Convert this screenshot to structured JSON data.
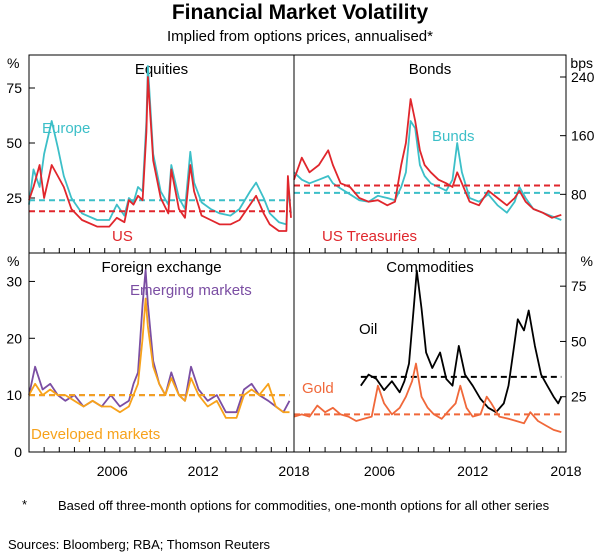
{
  "title": "Financial Market Volatility",
  "subtitle": "Implied from options prices, annualised*",
  "footnote_marker": "*",
  "footnote": "Based off three-month options for commodities, one-month options for all other series",
  "sources": "Sources: Bloomberg; RBA; Thomson Reuters",
  "colors": {
    "red": "#e0262c",
    "teal": "#3cbfc8",
    "purple": "#7b4ea3",
    "orange": "#f7a21b",
    "black": "#000000",
    "coral": "#f0683a"
  },
  "chart_data": [
    {
      "type": "line",
      "title": "Equities",
      "unit_label": "%",
      "xlim": [
        2001.0,
        2018.5
      ],
      "ylim": [
        0,
        90
      ],
      "yticks": [
        25,
        50,
        75
      ],
      "xticks": [
        2006,
        2012,
        2018
      ],
      "series": [
        {
          "name": "Europe",
          "color": "#3cbfc8",
          "mean": 24,
          "x": [
            2001.0,
            2001.3,
            2001.7,
            2002.0,
            2002.5,
            2002.9,
            2003.3,
            2003.8,
            2004.5,
            2005.5,
            2006.3,
            2006.8,
            2007.3,
            2007.6,
            2007.9,
            2008.2,
            2008.5,
            2008.75,
            2008.85,
            2009.2,
            2009.7,
            2010.2,
            2010.4,
            2010.9,
            2011.3,
            2011.65,
            2011.9,
            2012.4,
            2013.0,
            2013.6,
            2014.3,
            2014.9,
            2015.6,
            2016.0,
            2016.5,
            2016.9,
            2017.5,
            2018.0,
            2018.1,
            2018.3
          ],
          "y": [
            22,
            38,
            30,
            45,
            60,
            48,
            35,
            25,
            18,
            15,
            15,
            22,
            17,
            25,
            23,
            30,
            28,
            60,
            85,
            45,
            28,
            22,
            40,
            25,
            20,
            46,
            32,
            23,
            20,
            18,
            17,
            20,
            28,
            32,
            25,
            18,
            14,
            13,
            30,
            18
          ]
        },
        {
          "name": "US",
          "color": "#e0262c",
          "mean": 19,
          "x": [
            2001.0,
            2001.3,
            2001.7,
            2002.0,
            2002.5,
            2002.9,
            2003.3,
            2003.8,
            2004.5,
            2005.5,
            2006.3,
            2006.8,
            2007.3,
            2007.6,
            2007.9,
            2008.2,
            2008.5,
            2008.75,
            2008.85,
            2009.2,
            2009.7,
            2010.2,
            2010.4,
            2010.9,
            2011.3,
            2011.65,
            2011.9,
            2012.4,
            2013.0,
            2013.6,
            2014.3,
            2014.9,
            2015.6,
            2016.0,
            2016.5,
            2016.9,
            2017.5,
            2018.0,
            2018.1,
            2018.3
          ],
          "y": [
            24,
            30,
            40,
            25,
            40,
            35,
            30,
            20,
            15,
            12,
            12,
            16,
            14,
            24,
            22,
            26,
            24,
            55,
            80,
            42,
            25,
            18,
            38,
            20,
            16,
            40,
            28,
            17,
            15,
            13,
            13,
            15,
            22,
            26,
            18,
            13,
            10,
            10,
            35,
            16
          ]
        }
      ],
      "annotations": [
        "Europe",
        "US"
      ]
    },
    {
      "type": "line",
      "title": "Bonds",
      "unit_label": "bps",
      "xlim": [
        2001.0,
        2018.5
      ],
      "ylim": [
        0,
        270
      ],
      "yticks": [
        80,
        160,
        240
      ],
      "xticks": [
        2006,
        2012,
        2018
      ],
      "series": [
        {
          "name": "Bunds",
          "color": "#3cbfc8",
          "mean": 82,
          "x": [
            2001.0,
            2001.5,
            2002.0,
            2002.6,
            2003.2,
            2003.5,
            2004.0,
            2004.6,
            2005.2,
            2005.8,
            2006.4,
            2007.0,
            2007.5,
            2007.9,
            2008.2,
            2008.5,
            2008.8,
            2009.1,
            2009.4,
            2009.8,
            2010.3,
            2010.8,
            2011.2,
            2011.5,
            2011.8,
            2012.3,
            2012.9,
            2013.5,
            2014.1,
            2014.7,
            2015.2,
            2015.5,
            2015.9,
            2016.4,
            2017.0,
            2017.6,
            2018.2
          ],
          "y": [
            110,
            100,
            95,
            100,
            105,
            95,
            88,
            80,
            72,
            70,
            78,
            75,
            72,
            90,
            110,
            180,
            170,
            120,
            105,
            95,
            90,
            85,
            100,
            150,
            110,
            75,
            70,
            80,
            65,
            55,
            70,
            90,
            75,
            60,
            55,
            50,
            45
          ]
        },
        {
          "name": "US Treasuries",
          "color": "#e0262c",
          "mean": 92,
          "x": [
            2001.0,
            2001.5,
            2002.0,
            2002.6,
            2003.2,
            2003.5,
            2004.0,
            2004.6,
            2005.2,
            2005.8,
            2006.4,
            2007.0,
            2007.5,
            2007.9,
            2008.2,
            2008.5,
            2008.8,
            2009.1,
            2009.4,
            2009.8,
            2010.3,
            2010.8,
            2011.2,
            2011.5,
            2011.8,
            2012.3,
            2012.9,
            2013.5,
            2014.1,
            2014.7,
            2015.2,
            2015.5,
            2015.9,
            2016.4,
            2017.0,
            2017.6,
            2018.2
          ],
          "y": [
            100,
            130,
            110,
            120,
            140,
            120,
            95,
            90,
            75,
            70,
            72,
            65,
            70,
            120,
            150,
            210,
            180,
            140,
            120,
            110,
            100,
            95,
            90,
            110,
            95,
            70,
            65,
            85,
            75,
            65,
            75,
            85,
            70,
            60,
            55,
            48,
            52
          ]
        }
      ],
      "annotations": [
        "Bunds",
        "US Treasuries"
      ]
    },
    {
      "type": "line",
      "title": "Foreign exchange",
      "unit_label": "%",
      "xlim": [
        2001.0,
        2018.5
      ],
      "ylim": [
        0,
        35
      ],
      "yticks": [
        0,
        10,
        20,
        30
      ],
      "xticks": [
        2006,
        2012,
        2018
      ],
      "series": [
        {
          "name": "Emerging markets",
          "color": "#7b4ea3",
          "mean": 10,
          "x": [
            2001.0,
            2001.4,
            2001.9,
            2002.4,
            2002.9,
            2003.4,
            2004.0,
            2004.6,
            2005.2,
            2005.8,
            2006.4,
            2007.0,
            2007.6,
            2007.9,
            2008.2,
            2008.5,
            2008.7,
            2008.85,
            2009.2,
            2009.6,
            2010.0,
            2010.4,
            2010.9,
            2011.3,
            2011.7,
            2012.2,
            2012.8,
            2013.4,
            2014.0,
            2014.7,
            2015.2,
            2015.7,
            2016.2,
            2016.8,
            2017.3,
            2017.8,
            2018.2
          ],
          "y": [
            10,
            15,
            11,
            12,
            10,
            9,
            10,
            8,
            9,
            8,
            10,
            8,
            9,
            12,
            14,
            26,
            32,
            26,
            16,
            12,
            10,
            14,
            10,
            9,
            15,
            11,
            9,
            10,
            7,
            7,
            11,
            12,
            10,
            9,
            8,
            7,
            9
          ]
        },
        {
          "name": "Developed markets",
          "color": "#f7a21b",
          "mean": 10,
          "x": [
            2001.0,
            2001.4,
            2001.9,
            2002.4,
            2002.9,
            2003.4,
            2004.0,
            2004.6,
            2005.2,
            2005.8,
            2006.4,
            2007.0,
            2007.6,
            2007.9,
            2008.2,
            2008.5,
            2008.7,
            2008.85,
            2009.2,
            2009.6,
            2010.0,
            2010.4,
            2010.9,
            2011.3,
            2011.7,
            2012.2,
            2012.8,
            2013.4,
            2014.0,
            2014.7,
            2015.2,
            2015.7,
            2016.2,
            2016.8,
            2017.3,
            2017.8,
            2018.2
          ],
          "y": [
            10,
            12,
            10,
            11,
            10,
            10,
            9,
            8,
            9,
            8,
            8,
            7,
            8,
            10,
            12,
            20,
            27,
            22,
            15,
            12,
            10,
            13,
            10,
            9,
            13,
            10,
            8,
            9,
            6,
            6,
            10,
            11,
            10,
            12,
            8,
            7,
            7
          ]
        }
      ],
      "annotations": [
        "Emerging markets",
        "Developed markets"
      ]
    },
    {
      "type": "line",
      "title": "Commodities",
      "unit_label": "%",
      "xlim": [
        2001.0,
        2018.5
      ],
      "ylim": [
        0,
        90
      ],
      "yticks": [
        25,
        50,
        75
      ],
      "xticks": [
        2006,
        2012,
        2018
      ],
      "series": [
        {
          "name": "Oil",
          "color": "#000000",
          "mean": 34,
          "x": [
            2005.3,
            2005.8,
            2006.3,
            2006.8,
            2007.3,
            2007.8,
            2008.1,
            2008.4,
            2008.7,
            2008.9,
            2009.2,
            2009.5,
            2009.9,
            2010.4,
            2010.8,
            2011.2,
            2011.6,
            2012.0,
            2012.5,
            2013.0,
            2013.5,
            2014.0,
            2014.5,
            2014.8,
            2015.1,
            2015.4,
            2015.8,
            2016.1,
            2016.5,
            2016.9,
            2017.3,
            2017.7,
            2018.0,
            2018.2
          ],
          "y": [
            30,
            35,
            33,
            28,
            32,
            27,
            32,
            40,
            65,
            82,
            65,
            45,
            38,
            45,
            33,
            30,
            48,
            35,
            30,
            24,
            20,
            18,
            22,
            30,
            45,
            60,
            55,
            64,
            48,
            35,
            30,
            25,
            22,
            25
          ]
        },
        {
          "name": "Gold",
          "color": "#f0683a",
          "mean": 17,
          "x": [
            2001.0,
            2001.5,
            2002.0,
            2002.5,
            2003.0,
            2003.5,
            2004.0,
            2004.5,
            2005.0,
            2005.5,
            2006.0,
            2006.4,
            2006.8,
            2007.3,
            2007.8,
            2008.2,
            2008.6,
            2008.85,
            2009.2,
            2009.6,
            2010.0,
            2010.5,
            2011.0,
            2011.4,
            2011.7,
            2012.1,
            2012.5,
            2013.0,
            2013.4,
            2013.7,
            2014.2,
            2014.8,
            2015.3,
            2015.8,
            2016.2,
            2016.7,
            2017.2,
            2017.7,
            2018.2
          ],
          "y": [
            16,
            17,
            16,
            21,
            18,
            20,
            17,
            16,
            14,
            15,
            16,
            30,
            22,
            17,
            20,
            25,
            32,
            40,
            25,
            20,
            17,
            15,
            19,
            22,
            30,
            20,
            16,
            17,
            25,
            22,
            16,
            15,
            14,
            13,
            18,
            14,
            12,
            10,
            9
          ]
        }
      ],
      "annotations": [
        "Oil",
        "Gold"
      ]
    }
  ]
}
